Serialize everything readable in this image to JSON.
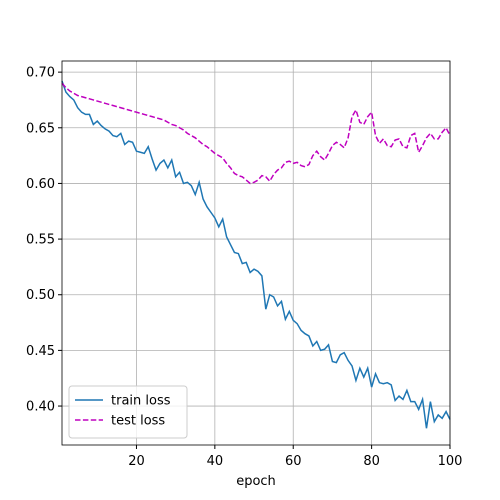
{
  "chart_data": {
    "type": "line",
    "xlabel": "epoch",
    "x": [
      1,
      2,
      3,
      4,
      5,
      6,
      7,
      8,
      9,
      10,
      11,
      12,
      13,
      14,
      15,
      16,
      17,
      18,
      19,
      20,
      21,
      22,
      23,
      24,
      25,
      26,
      27,
      28,
      29,
      30,
      31,
      32,
      33,
      34,
      35,
      36,
      37,
      38,
      39,
      40,
      41,
      42,
      43,
      44,
      45,
      46,
      47,
      48,
      49,
      50,
      51,
      52,
      53,
      54,
      55,
      56,
      57,
      58,
      59,
      60,
      61,
      62,
      63,
      64,
      65,
      66,
      67,
      68,
      69,
      70,
      71,
      72,
      73,
      74,
      75,
      76,
      77,
      78,
      79,
      80,
      81,
      82,
      83,
      84,
      85,
      86,
      87,
      88,
      89,
      90,
      91,
      92,
      93,
      94,
      95,
      96,
      97,
      98,
      99,
      100
    ],
    "series": [
      {
        "name": "train loss",
        "color": "#1f77b4",
        "dash": false,
        "values": [
          0.692,
          0.682,
          0.678,
          0.675,
          0.668,
          0.664,
          0.662,
          0.662,
          0.653,
          0.656,
          0.652,
          0.649,
          0.647,
          0.643,
          0.642,
          0.645,
          0.635,
          0.638,
          0.637,
          0.629,
          0.628,
          0.627,
          0.633,
          0.622,
          0.612,
          0.618,
          0.621,
          0.614,
          0.621,
          0.606,
          0.61,
          0.6,
          0.601,
          0.598,
          0.59,
          0.601,
          0.586,
          0.579,
          0.574,
          0.569,
          0.561,
          0.568,
          0.552,
          0.545,
          0.538,
          0.537,
          0.528,
          0.529,
          0.52,
          0.523,
          0.521,
          0.517,
          0.487,
          0.5,
          0.498,
          0.49,
          0.494,
          0.478,
          0.485,
          0.477,
          0.474,
          0.468,
          0.465,
          0.463,
          0.454,
          0.458,
          0.45,
          0.451,
          0.455,
          0.44,
          0.439,
          0.446,
          0.448,
          0.441,
          0.436,
          0.423,
          0.434,
          0.426,
          0.434,
          0.417,
          0.429,
          0.421,
          0.42,
          0.421,
          0.419,
          0.405,
          0.409,
          0.406,
          0.414,
          0.404,
          0.404,
          0.397,
          0.406,
          0.38,
          0.404,
          0.386,
          0.392,
          0.389,
          0.395,
          0.388
        ]
      },
      {
        "name": "test loss",
        "color": "#bf00bf",
        "dash": true,
        "values": [
          0.69,
          0.686,
          0.683,
          0.681,
          0.679,
          0.678,
          0.677,
          0.676,
          0.675,
          0.674,
          0.673,
          0.672,
          0.671,
          0.67,
          0.669,
          0.668,
          0.667,
          0.666,
          0.665,
          0.664,
          0.663,
          0.662,
          0.661,
          0.66,
          0.659,
          0.658,
          0.657,
          0.655,
          0.653,
          0.652,
          0.65,
          0.648,
          0.645,
          0.643,
          0.641,
          0.638,
          0.635,
          0.633,
          0.63,
          0.627,
          0.625,
          0.623,
          0.618,
          0.614,
          0.609,
          0.607,
          0.606,
          0.603,
          0.6,
          0.601,
          0.603,
          0.607,
          0.606,
          0.602,
          0.608,
          0.612,
          0.614,
          0.619,
          0.62,
          0.618,
          0.619,
          0.616,
          0.615,
          0.617,
          0.625,
          0.629,
          0.624,
          0.621,
          0.627,
          0.634,
          0.637,
          0.635,
          0.632,
          0.641,
          0.66,
          0.666,
          0.655,
          0.653,
          0.66,
          0.664,
          0.643,
          0.636,
          0.64,
          0.634,
          0.633,
          0.639,
          0.64,
          0.633,
          0.632,
          0.643,
          0.645,
          0.628,
          0.634,
          0.641,
          0.645,
          0.64,
          0.64,
          0.646,
          0.65,
          0.643
        ]
      }
    ],
    "xlim": [
      1,
      100
    ],
    "ylim": [
      0.365,
      0.71
    ],
    "xticks": [
      20,
      40,
      60,
      80,
      100
    ],
    "yticks": [
      {
        "value": 0.4,
        "label": "0.40"
      },
      {
        "value": 0.45,
        "label": "0.45"
      },
      {
        "value": 0.5,
        "label": "0.50"
      },
      {
        "value": 0.55,
        "label": "0.55"
      },
      {
        "value": 0.6,
        "label": "0.60"
      },
      {
        "value": 0.65,
        "label": "0.65"
      },
      {
        "value": 0.7,
        "label": "0.70"
      }
    ],
    "grid": true,
    "legend": "lower left"
  }
}
